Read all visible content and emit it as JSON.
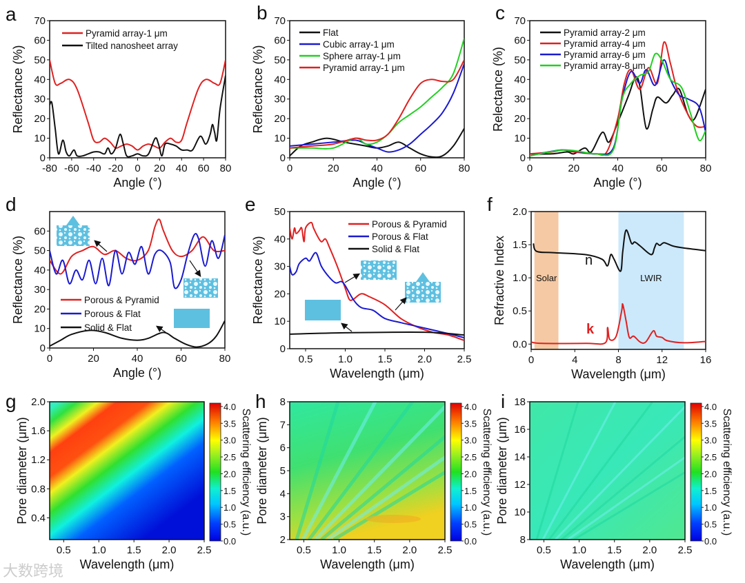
{
  "figure": {
    "watermark": "大数跨境"
  },
  "chart_data": [
    {
      "panel": "a",
      "type": "line",
      "xlabel": "Angle (°)",
      "ylabel": "Reflectance (%)",
      "xlim": [
        -80,
        80
      ],
      "ylim": [
        0,
        70
      ],
      "xticks": [
        -80,
        -60,
        -40,
        -20,
        0,
        20,
        40,
        60,
        80
      ],
      "yticks": [
        0,
        10,
        20,
        30,
        40,
        50,
        60,
        70
      ],
      "legend": "top-left",
      "series": [
        {
          "name": "Pyramid array-1 μm",
          "color": "#e02020",
          "x": [
            -80,
            -75,
            -70,
            -62,
            -55,
            -45,
            -40,
            -35,
            -30,
            -25,
            -20,
            -15,
            -10,
            -5,
            0,
            5,
            10,
            15,
            20,
            25,
            30,
            35,
            40,
            45,
            55,
            62,
            70,
            75,
            80
          ],
          "y": [
            50,
            38,
            38,
            40,
            35,
            18,
            9,
            8,
            10,
            8,
            5,
            6,
            7,
            6,
            4,
            6,
            7,
            6,
            5,
            8,
            10,
            8,
            9,
            18,
            35,
            40,
            38,
            38,
            50
          ]
        },
        {
          "name": "Tilted nanosheet array",
          "color": "#111111",
          "x": [
            -80,
            -78,
            -75,
            -72,
            -68,
            -65,
            -62,
            -58,
            -55,
            -50,
            -45,
            -40,
            -35,
            -30,
            -27,
            -24,
            -20,
            -16,
            -13,
            -10,
            -5,
            0,
            5,
            10,
            16,
            19,
            22,
            25,
            30,
            35,
            40,
            45,
            50,
            57,
            62,
            66,
            68,
            70,
            72,
            75,
            80
          ],
          "y": [
            27,
            28,
            15,
            2,
            9,
            3,
            1,
            4,
            1,
            1,
            2,
            3,
            3,
            2,
            5,
            2,
            5,
            12,
            7,
            1,
            1,
            2,
            1,
            2,
            10,
            7,
            1,
            7,
            7,
            6,
            4,
            4,
            4,
            11,
            7,
            12,
            17,
            13,
            9,
            25,
            42
          ]
        }
      ]
    },
    {
      "panel": "b",
      "type": "line",
      "xlabel": "Angle (°)",
      "ylabel": "Reflectance (%)",
      "xlim": [
        0,
        80
      ],
      "ylim": [
        0,
        70
      ],
      "xticks": [
        0,
        20,
        40,
        60,
        80
      ],
      "yticks": [
        0,
        10,
        20,
        30,
        40,
        50,
        60,
        70
      ],
      "legend": "top-left",
      "series": [
        {
          "name": "Flat",
          "color": "#111111",
          "x": [
            0,
            5,
            10,
            17,
            25,
            30,
            35,
            40,
            45,
            50,
            55,
            60,
            65,
            70,
            75,
            80
          ],
          "y": [
            1,
            6,
            8,
            10,
            8,
            7,
            6,
            5,
            6,
            8,
            5,
            2,
            0.5,
            1,
            6,
            15
          ]
        },
        {
          "name": "Cubic array-1 μm",
          "color": "#1a1ad0",
          "x": [
            0,
            10,
            20,
            30,
            35,
            40,
            45,
            50,
            55,
            60,
            65,
            70,
            75,
            80
          ],
          "y": [
            6,
            7,
            8,
            9,
            7,
            5,
            3,
            4,
            7,
            12,
            17,
            23,
            33,
            48
          ]
        },
        {
          "name": "Sphere array-1 μm",
          "color": "#20d020",
          "x": [
            0,
            10,
            20,
            30,
            35,
            40,
            45,
            50,
            55,
            60,
            65,
            70,
            75,
            80
          ],
          "y": [
            5,
            5,
            5,
            10,
            7,
            8,
            12,
            18,
            22,
            26,
            31,
            36,
            43,
            61
          ]
        },
        {
          "name": "Pyramid array-1 μm",
          "color": "#e02020",
          "x": [
            0,
            10,
            20,
            30,
            35,
            40,
            45,
            50,
            55,
            60,
            65,
            70,
            75,
            80
          ],
          "y": [
            5,
            6,
            7,
            10,
            9,
            9,
            12,
            20,
            30,
            38,
            40,
            39,
            40,
            50
          ]
        }
      ]
    },
    {
      "panel": "c",
      "type": "line",
      "xlabel": "Angle (°)",
      "ylabel": "Relectance (%)",
      "xlim": [
        0,
        80
      ],
      "ylim": [
        0,
        70
      ],
      "xticks": [
        0,
        20,
        40,
        60,
        80
      ],
      "yticks": [
        0,
        10,
        20,
        30,
        40,
        50,
        60,
        70
      ],
      "legend": "top-left",
      "series": [
        {
          "name": "Pyramid array-2 μm",
          "color": "#111111",
          "x": [
            0,
            10,
            17,
            20,
            25,
            28,
            33,
            36,
            40,
            45,
            48,
            50,
            53,
            56,
            58,
            62,
            65,
            68,
            72,
            75,
            80
          ],
          "y": [
            2,
            2,
            3,
            2,
            5,
            3,
            13,
            8,
            18,
            32,
            41,
            37,
            15,
            25,
            31,
            28,
            32,
            35,
            22,
            20,
            35
          ]
        },
        {
          "name": "Pyramid array-4 μm",
          "color": "#e02020",
          "x": [
            0,
            10,
            15,
            20,
            30,
            35,
            40,
            43,
            46,
            50,
            54,
            58,
            61,
            64,
            67,
            72,
            76,
            80
          ],
          "y": [
            2,
            3,
            4,
            3,
            2,
            3,
            20,
            38,
            45,
            35,
            46,
            38,
            59,
            48,
            35,
            22,
            16,
            16
          ]
        },
        {
          "name": "Pyramid array-6 μm",
          "color": "#1a1ad0",
          "x": [
            0,
            15,
            30,
            38,
            42,
            46,
            50,
            53,
            57,
            61,
            64,
            68,
            72,
            77,
            80
          ],
          "y": [
            1,
            4,
            2,
            5,
            30,
            44,
            38,
            45,
            37,
            50,
            40,
            32,
            30,
            26,
            13
          ]
        },
        {
          "name": "Pyramid array-8 μm",
          "color": "#20d020",
          "x": [
            0,
            16,
            30,
            38,
            42,
            46,
            50,
            54,
            57,
            60,
            64,
            69,
            73,
            77,
            80
          ],
          "y": [
            1,
            4,
            2,
            4,
            30,
            38,
            42,
            44,
            53,
            50,
            40,
            36,
            23,
            9,
            14
          ]
        }
      ]
    },
    {
      "panel": "d",
      "type": "line",
      "xlabel": "Angle (°)",
      "ylabel": "Reflectance (%)",
      "xlim": [
        0,
        80
      ],
      "ylim": [
        0,
        70
      ],
      "xticks": [
        0,
        20,
        40,
        60,
        80
      ],
      "yticks": [
        0,
        10,
        20,
        30,
        40,
        50,
        60
      ],
      "legend": "bottom-left",
      "series": [
        {
          "name": "Porous & Pyramid",
          "color": "#e02020",
          "x": [
            0,
            5,
            10,
            15,
            20,
            25,
            30,
            35,
            40,
            45,
            48,
            50,
            52,
            56,
            60,
            65,
            70,
            75,
            80
          ],
          "y": [
            45,
            38,
            47,
            50,
            52,
            48,
            50,
            46,
            45,
            50,
            62,
            66,
            60,
            50,
            47,
            50,
            57,
            50,
            50
          ]
        },
        {
          "name": "Porous & Flat",
          "color": "#1a1ad0",
          "x": [
            0,
            3,
            6,
            9,
            12,
            15,
            18,
            21,
            24,
            27,
            30,
            33,
            36,
            39,
            42,
            45,
            48,
            51,
            55,
            57,
            60,
            63,
            66,
            68,
            71,
            74,
            77,
            80
          ],
          "y": [
            50,
            38,
            45,
            33,
            40,
            35,
            45,
            33,
            46,
            32,
            50,
            38,
            49,
            43,
            52,
            38,
            48,
            50,
            44,
            31,
            35,
            48,
            58,
            56,
            42,
            55,
            46,
            58
          ]
        },
        {
          "name": "Solid & Flat",
          "color": "#111111",
          "x": [
            0,
            5,
            10,
            18,
            25,
            33,
            40,
            45,
            52,
            57,
            62,
            67,
            72,
            76,
            80
          ],
          "y": [
            1,
            4,
            7,
            9,
            8,
            5,
            4,
            5,
            8,
            5,
            2,
            0.5,
            2,
            6,
            14
          ]
        }
      ]
    },
    {
      "panel": "e",
      "type": "line",
      "xlabel": "Wavelength (μm)",
      "ylabel": "Reflectance (%)",
      "xlim": [
        0.3,
        2.5
      ],
      "ylim": [
        0,
        50
      ],
      "xticks": [
        0.5,
        1.0,
        1.5,
        2.0,
        2.5
      ],
      "yticks": [
        0,
        10,
        20,
        30,
        40,
        50
      ],
      "legend": "top-right",
      "series": [
        {
          "name": "Porous & Pyramid",
          "color": "#e02020",
          "x": [
            0.3,
            0.33,
            0.36,
            0.38,
            0.42,
            0.45,
            0.48,
            0.5,
            0.57,
            0.6,
            0.65,
            0.7,
            0.75,
            0.8,
            0.9,
            1.0,
            1.05,
            1.1,
            1.2,
            1.3,
            1.5,
            1.7,
            1.9,
            2.1,
            2.3,
            2.5
          ],
          "y": [
            44,
            40,
            44,
            42,
            43,
            44,
            39,
            44,
            46,
            44,
            41,
            39,
            40,
            37,
            30,
            22,
            18,
            18,
            20,
            19,
            16,
            11,
            8,
            6,
            5,
            3
          ]
        },
        {
          "name": "Porous & Flat",
          "color": "#1a1ad0",
          "x": [
            0.3,
            0.33,
            0.38,
            0.42,
            0.5,
            0.55,
            0.63,
            0.7,
            0.8,
            0.88,
            0.95,
            1.0,
            1.1,
            1.2,
            1.35,
            1.5,
            1.7,
            2.0,
            2.3,
            2.5
          ],
          "y": [
            30,
            27,
            28,
            31,
            33,
            32,
            35,
            30,
            26,
            24,
            24.5,
            23,
            18,
            15,
            14,
            11,
            9.5,
            7.5,
            5.5,
            4
          ]
        },
        {
          "name": "Solid & Flat",
          "color": "#111111",
          "x": [
            0.3,
            1.0,
            2.0,
            2.5
          ],
          "y": [
            5.3,
            5.8,
            6,
            5
          ]
        }
      ]
    },
    {
      "panel": "f",
      "type": "line",
      "xlabel": "Wavelength (μm)",
      "ylabel": "Refractive Index",
      "xlim": [
        0,
        16
      ],
      "ylim": [
        -0.08,
        2.0
      ],
      "xticks": [
        0,
        4,
        8,
        12,
        16
      ],
      "yticks": [
        0.0,
        0.5,
        1.0,
        1.5,
        2.0
      ],
      "bands": [
        {
          "label": "Solar",
          "range": [
            0.3,
            2.5
          ],
          "color": "#f5c9a3"
        },
        {
          "label": "LWIR",
          "range": [
            8,
            14
          ],
          "color": "#cce9fb"
        }
      ],
      "series": [
        {
          "name": "n",
          "color": "#111111",
          "x": [
            0.2,
            0.5,
            2,
            5,
            6.5,
            7,
            7.3,
            7.6,
            8.2,
            8.4,
            8.7,
            9.2,
            9.5,
            10,
            11,
            11.3,
            11.5,
            11.8,
            12.2,
            13,
            14,
            16
          ],
          "y": [
            1.52,
            1.4,
            1.38,
            1.35,
            1.28,
            1.18,
            1.35,
            1.28,
            1.1,
            1.4,
            1.72,
            1.52,
            1.54,
            1.48,
            1.35,
            1.45,
            1.52,
            1.49,
            1.53,
            1.48,
            1.45,
            1.41
          ]
        },
        {
          "name": "k",
          "color": "#e02020",
          "x": [
            0,
            1,
            5,
            6.8,
            7,
            7.2,
            7.8,
            8.3,
            8.4,
            8.7,
            9,
            9.4,
            10,
            10.5,
            11.2,
            11.5,
            12,
            12.5,
            14,
            16
          ],
          "y": [
            0.03,
            0.01,
            0.01,
            0.02,
            0.25,
            0.07,
            0.12,
            0.5,
            0.6,
            0.35,
            0.1,
            0.12,
            0.03,
            0.03,
            0.2,
            0.12,
            0.1,
            0.05,
            0.02,
            0.04
          ]
        }
      ]
    },
    {
      "panel": "g",
      "type": "heatmap",
      "xlabel": "Wavelength (μm)",
      "ylabel": "Pore diameter (μm)",
      "xlim": [
        0.3,
        2.5
      ],
      "ylim": [
        0.1,
        2.0
      ],
      "xticks": [
        0.5,
        1.0,
        1.5,
        2.0,
        2.5
      ],
      "yticks": [
        0.4,
        0.8,
        1.2,
        1.6,
        2.0
      ],
      "colorbar": {
        "label": "Scattering efficiency (a.u.)",
        "range": [
          0,
          4.1
        ],
        "ticks": [
          0.0,
          0.5,
          1.0,
          1.5,
          2.0,
          2.5,
          3.0,
          3.5,
          4.0
        ]
      }
    },
    {
      "panel": "h",
      "type": "heatmap",
      "xlabel": "Wavelength (μm)",
      "ylabel": "Pore diameter (μm)",
      "xlim": [
        0.3,
        2.5
      ],
      "ylim": [
        2,
        8
      ],
      "xticks": [
        0.5,
        1.0,
        1.5,
        2.0,
        2.5
      ],
      "yticks": [
        2,
        3,
        4,
        5,
        6,
        7,
        8
      ],
      "colorbar": {
        "label": "Scattering efficiency (a.u.)",
        "range": [
          0,
          4.1
        ],
        "ticks": [
          0.0,
          0.5,
          1.0,
          1.5,
          2.0,
          2.5,
          3.0,
          3.5,
          4.0
        ]
      }
    },
    {
      "panel": "i",
      "type": "heatmap",
      "xlabel": "Wavelength (μm)",
      "ylabel": "Pore diameter (μm)",
      "xlim": [
        0.3,
        2.5
      ],
      "ylim": [
        8,
        18
      ],
      "xticks": [
        0.5,
        1.0,
        1.5,
        2.0,
        2.5
      ],
      "yticks": [
        8,
        10,
        12,
        14,
        16,
        18
      ],
      "colorbar": {
        "label": "Scattering efficiency (a.u.)",
        "range": [
          0,
          4.1
        ],
        "ticks": [
          0.0,
          0.5,
          1.0,
          1.5,
          2.0,
          2.5,
          3.0,
          3.5,
          4.0
        ]
      }
    }
  ]
}
